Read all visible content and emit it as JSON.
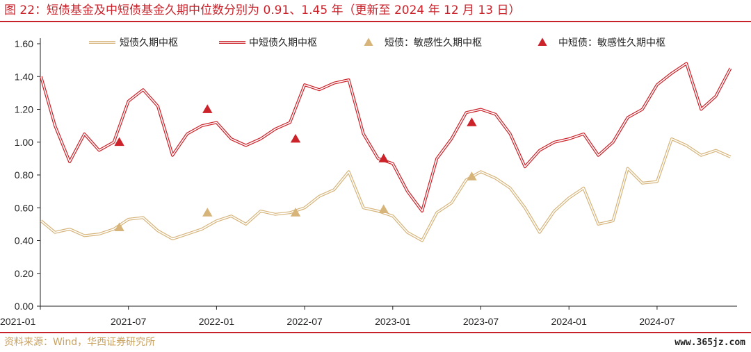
{
  "header": {
    "title": "图 22：短债基金及中短债基金久期中位数分别为 0.91、1.45 年（更新至 2024 年 12 月 13 日）"
  },
  "footer": {
    "source": "资料来源：Wind，华西证券研究所",
    "watermark": "www.365jz.com"
  },
  "colors": {
    "short": "#d6b47a",
    "mid": "#cc2229",
    "brand": "#c8222a"
  },
  "chart_data": {
    "type": "line",
    "x_ticks": [
      "2021-01",
      "2021-07",
      "2022-01",
      "2022-07",
      "2023-01",
      "2023-07",
      "2024-01",
      "2024-07"
    ],
    "xlim": [
      "2021-01",
      "2024-12"
    ],
    "ylim": [
      0,
      1.6
    ],
    "y_ticks": [
      "0.00",
      "0.20",
      "0.40",
      "0.60",
      "0.80",
      "1.00",
      "1.20",
      "1.40",
      "1.60"
    ],
    "legend_position": "top",
    "series": [
      {
        "name": "短债久期中枢",
        "kind": "line",
        "x": [
          "2021-01",
          "2021-02",
          "2021-03",
          "2021-04",
          "2021-05",
          "2021-06",
          "2021-07",
          "2021-08",
          "2021-09",
          "2021-10",
          "2021-11",
          "2021-12",
          "2022-01",
          "2022-02",
          "2022-03",
          "2022-04",
          "2022-05",
          "2022-06",
          "2022-07",
          "2022-08",
          "2022-09",
          "2022-10",
          "2022-11",
          "2022-12",
          "2023-01",
          "2023-02",
          "2023-03",
          "2023-04",
          "2023-05",
          "2023-06",
          "2023-07",
          "2023-08",
          "2023-09",
          "2023-10",
          "2023-11",
          "2023-12",
          "2024-01",
          "2024-02",
          "2024-03",
          "2024-04",
          "2024-05",
          "2024-06",
          "2024-07",
          "2024-08",
          "2024-09",
          "2024-10",
          "2024-11",
          "2024-12"
        ],
        "values": [
          0.52,
          0.45,
          0.47,
          0.43,
          0.44,
          0.47,
          0.53,
          0.54,
          0.46,
          0.41,
          0.44,
          0.47,
          0.52,
          0.55,
          0.5,
          0.58,
          0.56,
          0.57,
          0.6,
          0.67,
          0.71,
          0.82,
          0.6,
          0.58,
          0.55,
          0.45,
          0.4,
          0.57,
          0.63,
          0.77,
          0.82,
          0.78,
          0.72,
          0.6,
          0.45,
          0.58,
          0.66,
          0.72,
          0.5,
          0.52,
          0.84,
          0.75,
          0.76,
          1.02,
          0.98,
          0.92,
          0.95,
          0.91
        ]
      },
      {
        "name": "中短债久期中枢",
        "kind": "line",
        "x": [
          "2021-01",
          "2021-02",
          "2021-03",
          "2021-04",
          "2021-05",
          "2021-06",
          "2021-07",
          "2021-08",
          "2021-09",
          "2021-10",
          "2021-11",
          "2021-12",
          "2022-01",
          "2022-02",
          "2022-03",
          "2022-04",
          "2022-05",
          "2022-06",
          "2022-07",
          "2022-08",
          "2022-09",
          "2022-10",
          "2022-11",
          "2022-12",
          "2023-01",
          "2023-02",
          "2023-03",
          "2023-04",
          "2023-05",
          "2023-06",
          "2023-07",
          "2023-08",
          "2023-09",
          "2023-10",
          "2023-11",
          "2023-12",
          "2024-01",
          "2024-02",
          "2024-03",
          "2024-04",
          "2024-05",
          "2024-06",
          "2024-07",
          "2024-08",
          "2024-09",
          "2024-10",
          "2024-11",
          "2024-12"
        ],
        "values": [
          1.4,
          1.1,
          0.88,
          1.05,
          0.95,
          1.0,
          1.25,
          1.32,
          1.22,
          0.92,
          1.05,
          1.1,
          1.12,
          1.02,
          0.98,
          1.02,
          1.08,
          1.12,
          1.35,
          1.32,
          1.36,
          1.38,
          1.05,
          0.9,
          0.87,
          0.7,
          0.58,
          0.9,
          1.02,
          1.18,
          1.2,
          1.17,
          1.05,
          0.85,
          0.95,
          1.0,
          1.02,
          1.05,
          0.92,
          1.0,
          1.15,
          1.2,
          1.35,
          1.42,
          1.48,
          1.2,
          1.28,
          1.45
        ]
      },
      {
        "name": "短债：敏感性久期中枢",
        "kind": "marker",
        "x": [
          "2021-06",
          "2021-12",
          "2022-06",
          "2022-12",
          "2023-06"
        ],
        "values": [
          0.48,
          0.57,
          0.57,
          0.59,
          0.79
        ]
      },
      {
        "name": "中短债：敏感性久期中枢",
        "kind": "marker",
        "x": [
          "2021-06",
          "2021-12",
          "2022-06",
          "2022-12",
          "2023-06"
        ],
        "values": [
          1.0,
          1.2,
          1.02,
          0.9,
          1.12
        ]
      }
    ]
  }
}
